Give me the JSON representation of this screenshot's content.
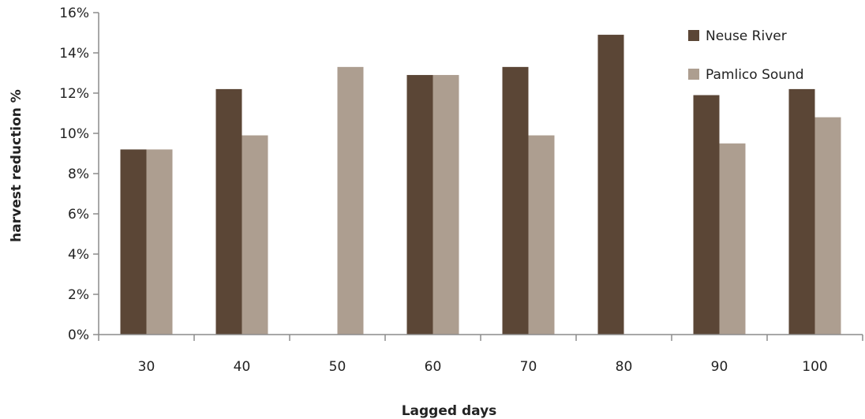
{
  "chart_data": {
    "type": "bar",
    "title": "",
    "xlabel": "Lagged days",
    "ylabel": "harvest reduction %",
    "categories": [
      "30",
      "40",
      "50",
      "60",
      "70",
      "80",
      "90",
      "100"
    ],
    "series": [
      {
        "name": "Neuse River",
        "color": "#5b4636",
        "values": [
          9.2,
          12.2,
          null,
          12.9,
          13.3,
          14.9,
          11.9,
          12.2
        ]
      },
      {
        "name": "Pamlico Sound",
        "color": "#ad9e90",
        "values": [
          9.2,
          9.9,
          13.3,
          12.9,
          9.9,
          null,
          9.5,
          10.8
        ]
      }
    ],
    "ylim": [
      0,
      16
    ],
    "yticks": [
      "0%",
      "2%",
      "4%",
      "6%",
      "8%",
      "10%",
      "12%",
      "14%",
      "16%"
    ],
    "ytick_values": [
      0,
      2,
      4,
      6,
      8,
      10,
      12,
      14,
      16
    ],
    "grid": false,
    "legend_position": "top-right"
  }
}
